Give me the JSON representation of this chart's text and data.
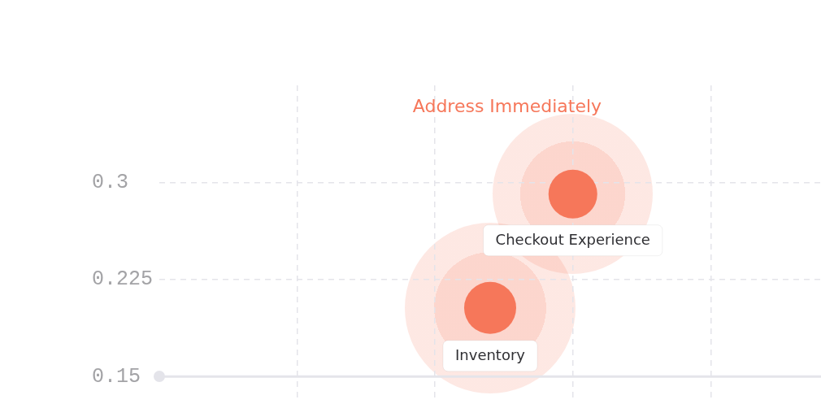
{
  "chart_data": {
    "type": "bubble",
    "categories": [
      null,
      null,
      null,
      null,
      null,
      null,
      null,
      null,
      null,
      null,
      null,
      null,
      null,
      null,
      null,
      null,
      null,
      null,
      null,
      null,
      null,
      null,
      null,
      null,
      null
    ],
    "series": [
      {
        "name": "Checkout Experience",
        "color": "#f6775a",
        "values": [
          null,
          null,
          null,
          null,
          null,
          null,
          null,
          null,
          null,
          null,
          null,
          null,
          null,
          null,
          null,
          0.291,
          null,
          null,
          null,
          null,
          null,
          null,
          null,
          null,
          null
        ],
        "sizes": [
          null,
          null,
          null,
          null,
          null,
          null,
          null,
          null,
          null,
          null,
          null,
          null,
          null,
          null,
          null,
          0.88,
          null,
          null,
          null,
          null,
          null,
          null,
          null,
          null,
          null
        ]
      },
      {
        "name": "Inventory",
        "color": "#f6775a",
        "values": [
          null,
          null,
          null,
          null,
          null,
          null,
          null,
          null,
          null,
          null,
          null,
          null,
          0.203,
          null,
          null,
          null,
          null,
          null,
          null,
          null,
          null,
          null,
          null,
          null,
          null
        ],
        "sizes": [
          null,
          null,
          null,
          null,
          null,
          null,
          null,
          null,
          null,
          null,
          null,
          null,
          1,
          null,
          null,
          null,
          null,
          null,
          null,
          null,
          null,
          null,
          null,
          null,
          null
        ]
      }
    ],
    "ylim": [
      0.13,
      0.375
    ],
    "yticks": [
      0.15,
      0.225,
      0.3
    ],
    "grid": true,
    "legend": false,
    "tick_labels": "y",
    "ref_lines": [
      {
        "axis": "y",
        "value": 0.15,
        "color": "#e4e4ea",
        "line_style": "solid"
      }
    ],
    "annotations": [
      "Address Immediately"
    ]
  }
}
